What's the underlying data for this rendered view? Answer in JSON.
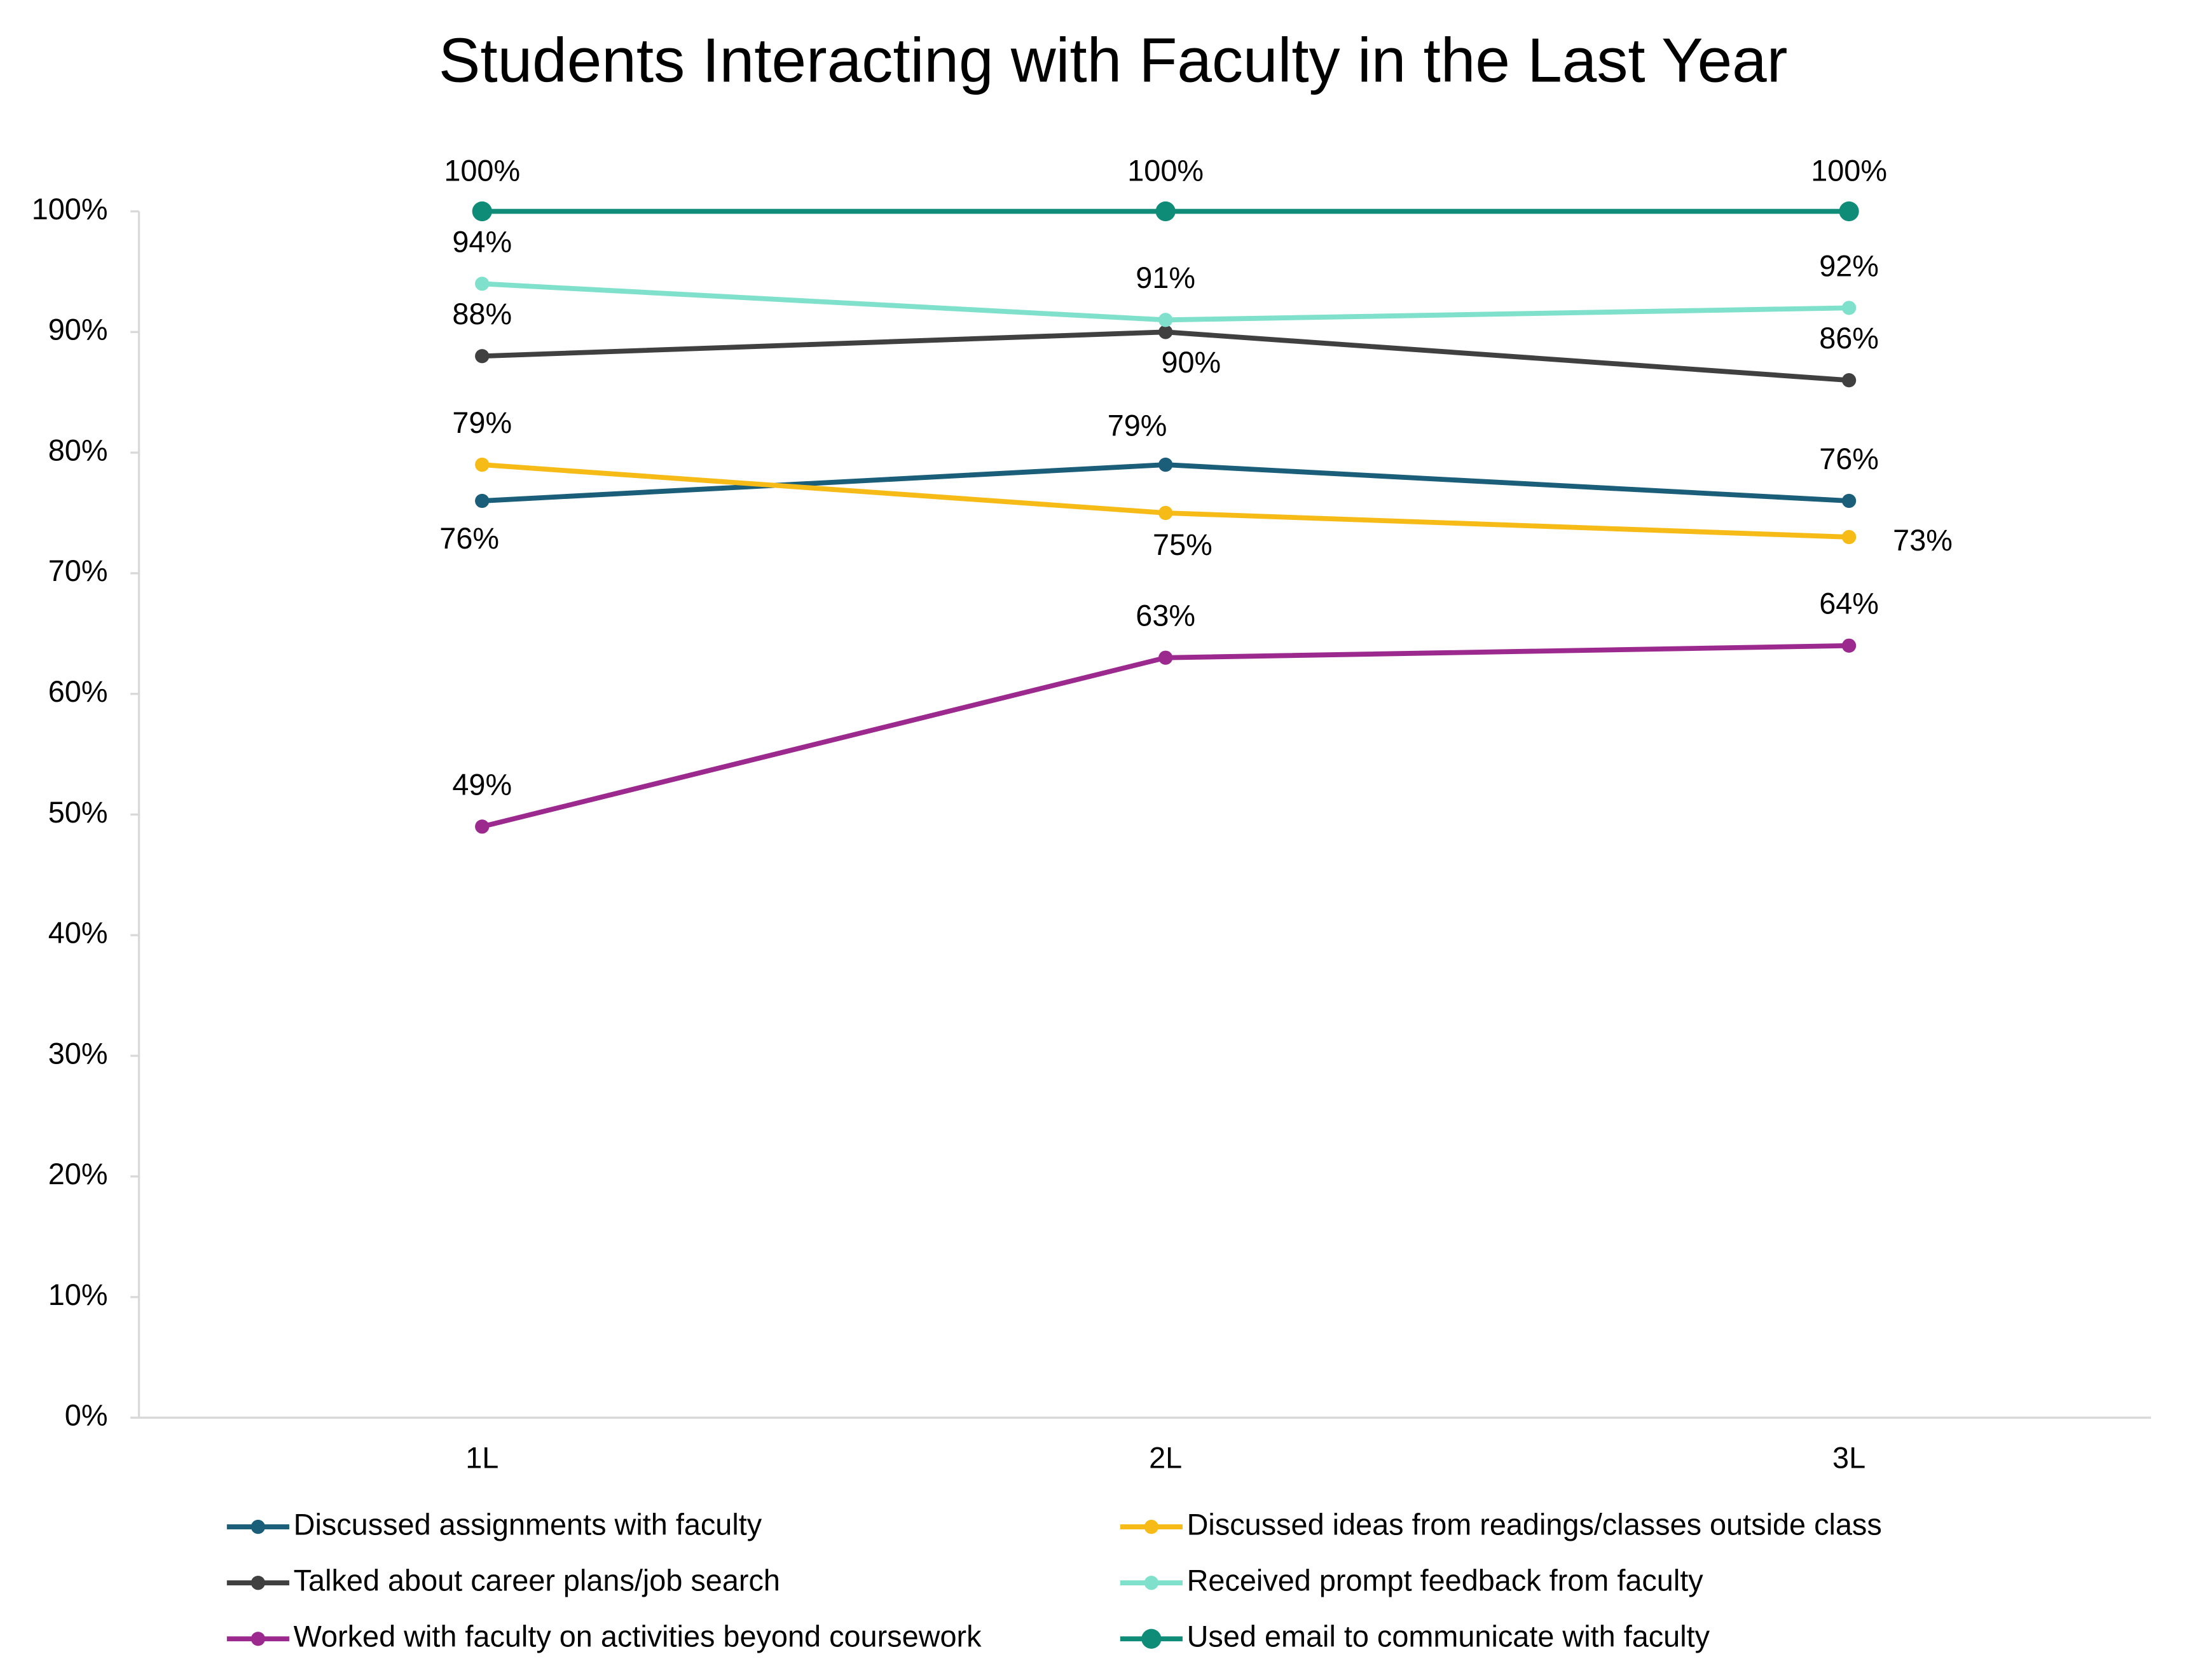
{
  "chart_data": {
    "type": "line",
    "title": "Students Interacting with Faculty in the Last Year",
    "categories": [
      "1L",
      "2L",
      "3L"
    ],
    "series": [
      {
        "name": "Discussed assignments with faculty",
        "color": "#1a5e7a",
        "values": [
          76,
          79,
          76
        ],
        "value_labels": [
          "76%",
          "79%",
          "76%"
        ]
      },
      {
        "name": "Discussed ideas from readings/classes outside class",
        "color": "#f6bb17",
        "values": [
          79,
          75,
          73
        ],
        "value_labels": [
          "79%",
          "75%",
          "73%"
        ]
      },
      {
        "name": "Talked about career plans/job search",
        "color": "#404040",
        "values": [
          88,
          90,
          86
        ],
        "value_labels": [
          "88%",
          "90%",
          "86%"
        ]
      },
      {
        "name": "Received prompt feedback from faculty",
        "color": "#7fe0cb",
        "values": [
          94,
          91,
          92
        ],
        "value_labels": [
          "94%",
          "91%",
          "92%"
        ]
      },
      {
        "name": "Worked with faculty on activities beyond coursework",
        "color": "#9c2a8e",
        "values": [
          49,
          63,
          64
        ],
        "value_labels": [
          "49%",
          "63%",
          "64%"
        ]
      },
      {
        "name": "Used email to communicate with faculty",
        "color": "#0f8c78",
        "values": [
          100,
          100,
          100
        ],
        "value_labels": [
          "100%",
          "100%",
          "100%"
        ]
      }
    ],
    "ylim": [
      0,
      100
    ],
    "yticks": [
      {
        "value": 0,
        "label": "0%"
      },
      {
        "value": 10,
        "label": "10%"
      },
      {
        "value": 20,
        "label": "20%"
      },
      {
        "value": 30,
        "label": "30%"
      },
      {
        "value": 40,
        "label": "40%"
      },
      {
        "value": 50,
        "label": "50%"
      },
      {
        "value": 60,
        "label": "60%"
      },
      {
        "value": 70,
        "label": "70%"
      },
      {
        "value": 80,
        "label": "80%"
      },
      {
        "value": 90,
        "label": "90%"
      },
      {
        "value": 100,
        "label": "100%"
      }
    ],
    "grid": false
  }
}
